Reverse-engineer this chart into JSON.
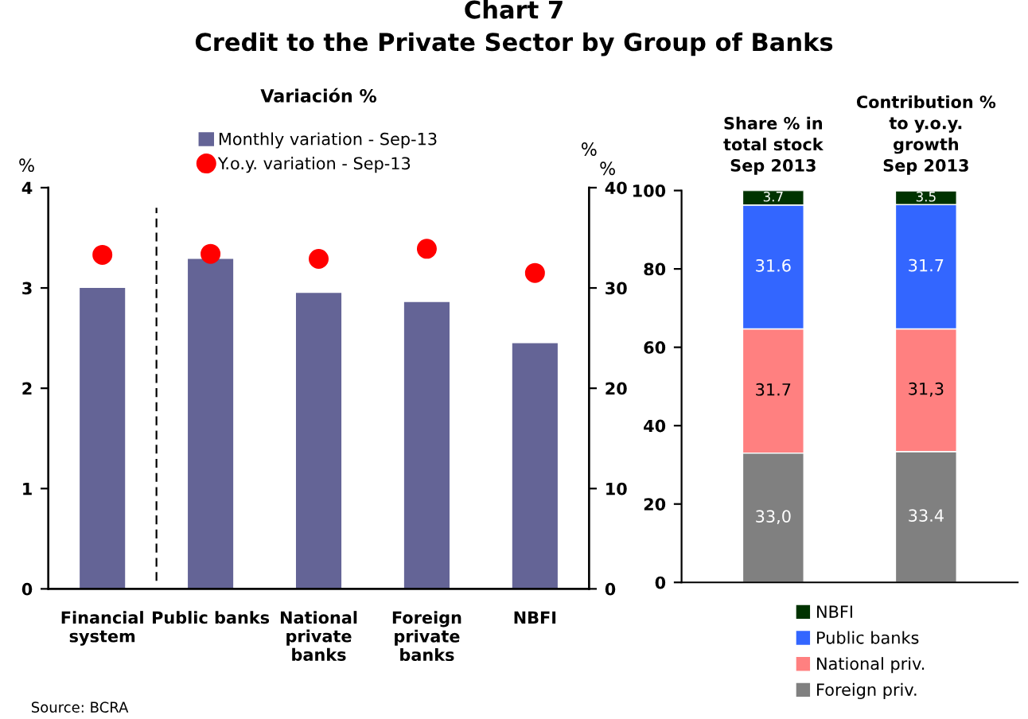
{
  "chart_data": [
    {
      "type": "bar",
      "title": "Chart 7",
      "subtitle": "Credit to the Private Sector by Group of Banks",
      "legend_title": "Variación %",
      "categories": [
        "Financial\nsystem",
        "Public banks",
        "National\nprivate\nbanks",
        "Foreign\nprivate\nbanks",
        "NBFI"
      ],
      "series": [
        {
          "name": "Monthly variation - Sep-13",
          "type": "bar",
          "color": "#646496",
          "values": [
            3.0,
            3.29,
            2.95,
            2.86,
            2.45
          ]
        },
        {
          "name": "Y.o.y. variation - Sep-13",
          "type": "scatter",
          "axis": "y2",
          "color": "#ff0000",
          "values": [
            33.3,
            33.4,
            32.9,
            33.9,
            31.5
          ]
        }
      ],
      "ylabel": "%",
      "y2label": "%",
      "ylim": [
        0,
        4
      ],
      "yticks": [
        0,
        1,
        2,
        3,
        4
      ],
      "y2lim": [
        0,
        40
      ],
      "y2ticks": [
        0,
        10,
        20,
        30,
        40
      ],
      "marker": "circle",
      "legend": "top",
      "grid": false,
      "annotations": [
        "Source: BCRA"
      ]
    },
    {
      "type": "bar",
      "stacked": true,
      "categories": [
        "Share % in\ntotal stock\nSep 2013",
        "Contribution %\nto y.o.y.\ngrowth\nSep 2013"
      ],
      "series": [
        {
          "name": "Foreign priv.",
          "color": "#808080",
          "values": [
            33.0,
            33.4
          ],
          "value_labels": [
            "33,0",
            "33.4"
          ]
        },
        {
          "name": "National priv.",
          "color": "#ff8080",
          "values": [
            31.7,
            31.3
          ],
          "value_labels": [
            "31.7",
            "31,3"
          ]
        },
        {
          "name": "Public banks",
          "color": "#3366ff",
          "values": [
            31.6,
            31.7
          ],
          "value_labels": [
            "31.6",
            "31.7"
          ]
        },
        {
          "name": "NBFI",
          "color": "#003300",
          "values": [
            3.7,
            3.5
          ],
          "value_labels": [
            "3.7",
            "3.5"
          ]
        }
      ],
      "ylabel": "%",
      "ylim": [
        0,
        100
      ],
      "yticks": [
        0,
        20,
        40,
        60,
        80,
        100
      ],
      "legend": "bottom",
      "grid": false
    }
  ]
}
